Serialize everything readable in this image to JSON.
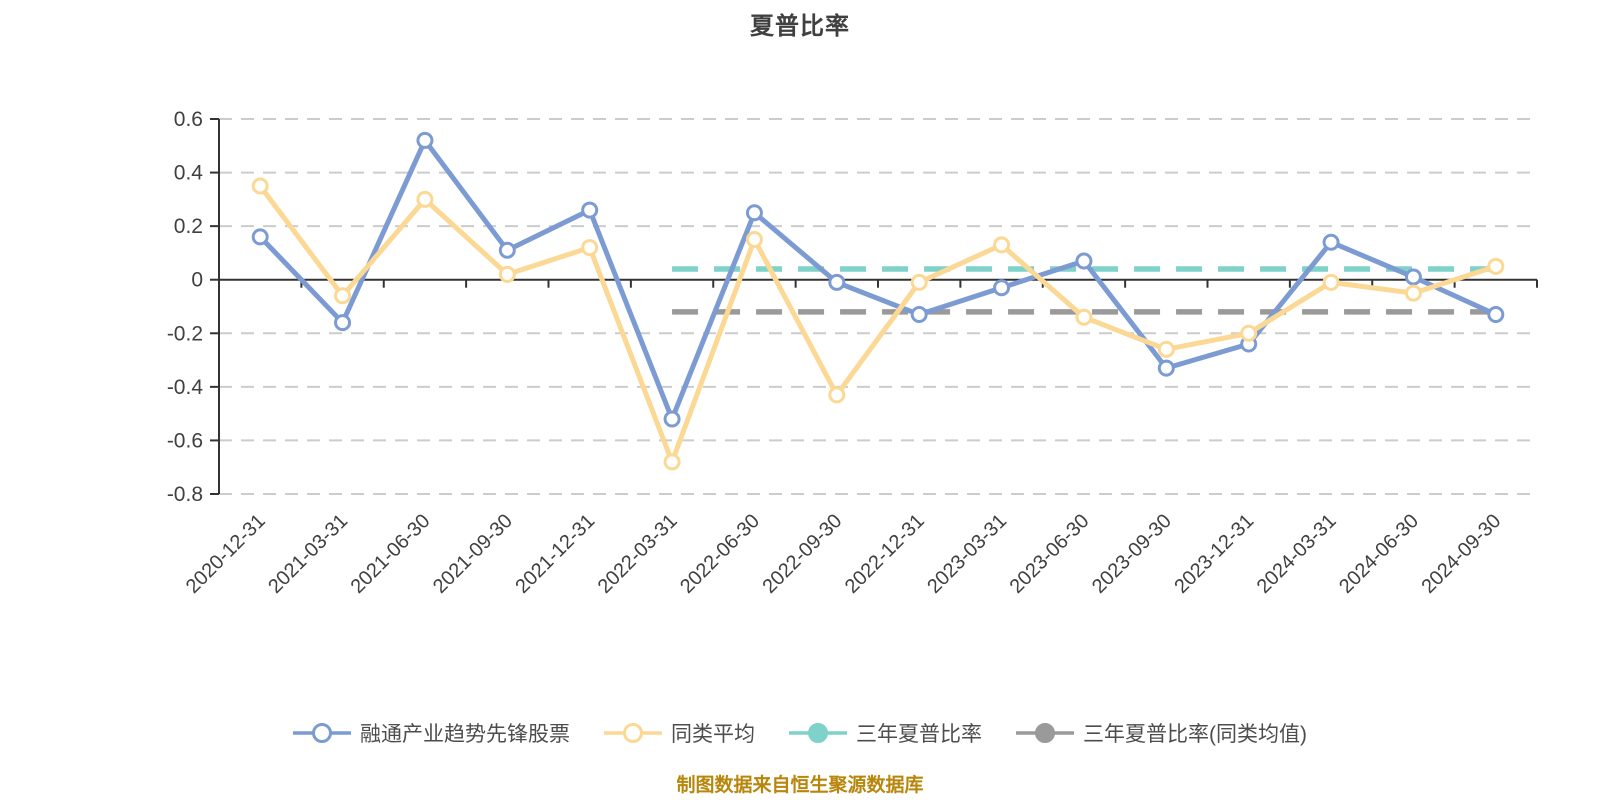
{
  "page": {
    "background": "#ffffff"
  },
  "chart_data": {
    "type": "line",
    "title": "夏普比率",
    "source_note": "制图数据来自恒生聚源数据库",
    "x_labels": [
      "2020-12-31",
      "2021-03-31",
      "2021-06-30",
      "2021-09-30",
      "2021-12-31",
      "2022-03-31",
      "2022-06-30",
      "2022-09-30",
      "2022-12-31",
      "2023-03-31",
      "2023-06-30",
      "2023-09-30",
      "2023-12-31",
      "2024-03-31",
      "2024-06-30",
      "2024-09-30"
    ],
    "y_ticks": [
      "0.6",
      "0.4",
      "0.2",
      "0",
      "-0.2",
      "-0.4",
      "-0.6",
      "-0.8"
    ],
    "ylim": [
      -0.8,
      0.6
    ],
    "grid": "dashed-horizontal",
    "legend_position": "bottom",
    "series": [
      {
        "name": "融通产业趋势先锋股票",
        "type": "line",
        "color": "#7b9bd2",
        "marker": "circle",
        "marker_fill": "#ffffff",
        "values": [
          0.16,
          -0.16,
          0.52,
          0.11,
          0.26,
          -0.52,
          0.25,
          -0.01,
          -0.13,
          -0.03,
          0.07,
          -0.33,
          -0.24,
          0.14,
          0.01,
          -0.13
        ]
      },
      {
        "name": "同类平均",
        "type": "line",
        "color": "#fbd893",
        "marker": "circle",
        "marker_fill": "#ffffff",
        "values": [
          0.35,
          -0.06,
          0.3,
          0.02,
          0.12,
          -0.68,
          0.15,
          -0.43,
          -0.01,
          0.13,
          -0.14,
          -0.26,
          -0.2,
          -0.01,
          -0.05,
          0.05
        ]
      },
      {
        "name": "三年夏普比率",
        "type": "hline",
        "color": "#7fd2c9",
        "line_style": "dashed",
        "value": 0.04,
        "x_start": "2022-03-31",
        "x_end": "2024-09-30"
      },
      {
        "name": "三年夏普比率(同类均值)",
        "type": "hline",
        "color": "#9a9a9a",
        "line_style": "dashed",
        "value": -0.12,
        "x_start": "2022-03-31",
        "x_end": "2024-09-30"
      }
    ]
  },
  "colors": {
    "title_text": "#404040",
    "axis_line": "#333333",
    "tick_label": "#404040",
    "grid_line": "#cccccc",
    "legend_text": "#4d4d4d",
    "source_text": "#b8860b"
  }
}
